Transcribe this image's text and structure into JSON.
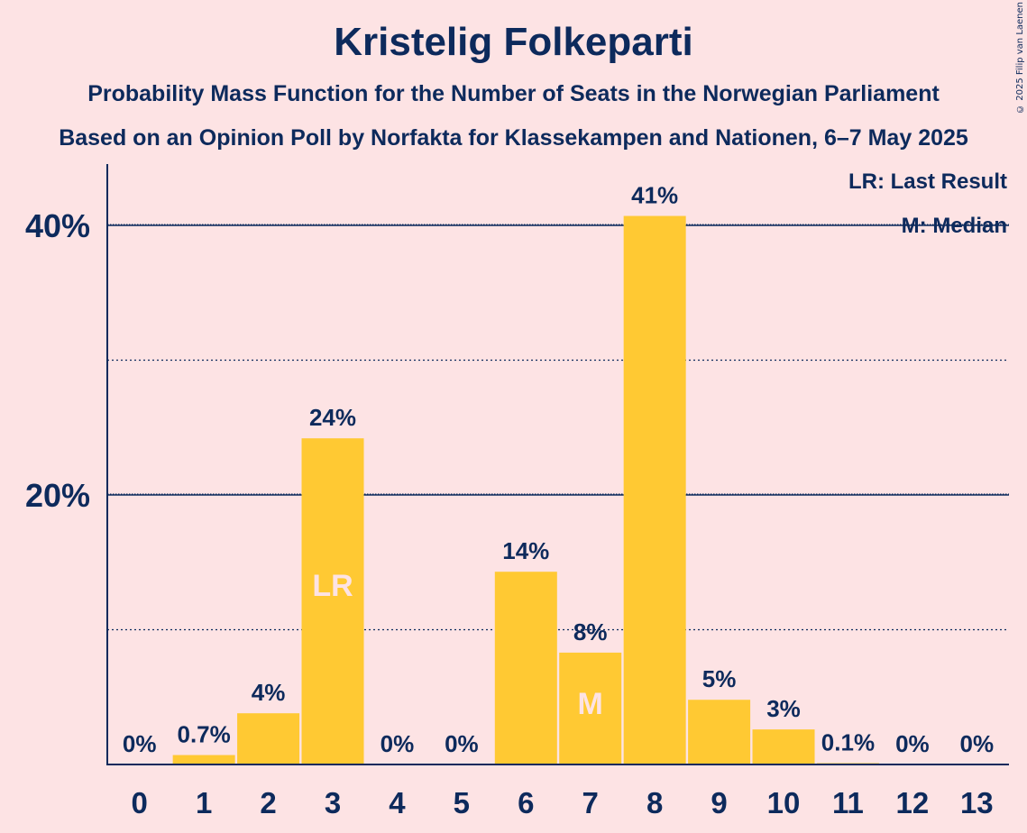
{
  "header": {
    "title": "Kristelig Folkeparti",
    "subtitle1": "Probability Mass Function for the Number of Seats in the Norwegian Parliament",
    "subtitle2": "Based on an Opinion Poll by Norfakta for Klassekampen and Nationen, 6–7 May 2025",
    "copyright": "© 2025 Filip van Laenen"
  },
  "legend": {
    "lr": "LR: Last Result",
    "m": "M: Median"
  },
  "colors": {
    "background": "#fde3e4",
    "bar": "#ffc933",
    "text": "#0d2a5c"
  },
  "chart_data": {
    "type": "bar",
    "categories": [
      "0",
      "1",
      "2",
      "3",
      "4",
      "5",
      "6",
      "7",
      "8",
      "9",
      "10",
      "11",
      "12",
      "13"
    ],
    "values": [
      0,
      0.7,
      4,
      24,
      0,
      0,
      14,
      8,
      41,
      5,
      3,
      0.1,
      0,
      0
    ],
    "heights": [
      0,
      0.7,
      3.8,
      24.2,
      0,
      0,
      14.3,
      8.3,
      40.7,
      4.8,
      2.6,
      0.1,
      0,
      0
    ],
    "labels": [
      "0%",
      "0.7%",
      "4%",
      "24%",
      "0%",
      "0%",
      "14%",
      "8%",
      "41%",
      "5%",
      "3%",
      "0.1%",
      "0%",
      "0%"
    ],
    "ylim": [
      0,
      44
    ],
    "yticks": [
      {
        "value": 20,
        "label": "20%"
      },
      {
        "value": 40,
        "label": "40%"
      }
    ],
    "minor_gridlines": [
      10,
      30
    ],
    "markers": [
      {
        "category": "3",
        "text": "LR"
      },
      {
        "category": "7",
        "text": "M"
      }
    ],
    "legend_position": "top-right"
  }
}
